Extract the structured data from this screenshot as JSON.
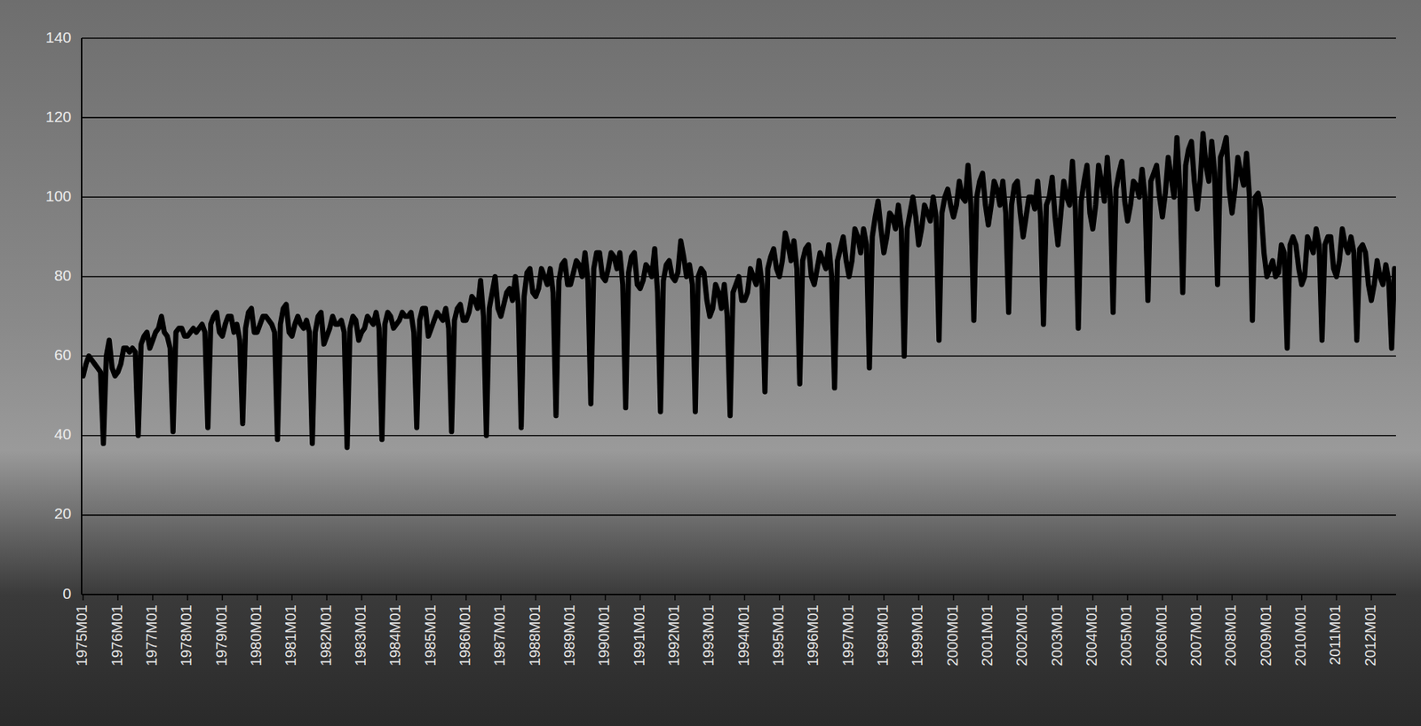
{
  "chart_data": {
    "type": "line",
    "color": "#000000",
    "grid": true,
    "ylim": [
      0,
      140
    ],
    "yticks": [
      0,
      20,
      40,
      60,
      80,
      100,
      120,
      140
    ],
    "categories": [
      "1975M01",
      null,
      null,
      null,
      null,
      null,
      null,
      null,
      null,
      null,
      null,
      null,
      "1976M01",
      null,
      null,
      null,
      null,
      null,
      null,
      null,
      null,
      null,
      null,
      null,
      "1977M01",
      null,
      null,
      null,
      null,
      null,
      null,
      null,
      null,
      null,
      null,
      null,
      "1978M01",
      null,
      null,
      null,
      null,
      null,
      null,
      null,
      null,
      null,
      null,
      null,
      "1979M01",
      null,
      null,
      null,
      null,
      null,
      null,
      null,
      null,
      null,
      null,
      null,
      "1980M01",
      null,
      null,
      null,
      null,
      null,
      null,
      null,
      null,
      null,
      null,
      null,
      "1981M01",
      null,
      null,
      null,
      null,
      null,
      null,
      null,
      null,
      null,
      null,
      null,
      "1982M01",
      null,
      null,
      null,
      null,
      null,
      null,
      null,
      null,
      null,
      null,
      null,
      "1983M01",
      null,
      null,
      null,
      null,
      null,
      null,
      null,
      null,
      null,
      null,
      null,
      "1984M01",
      null,
      null,
      null,
      null,
      null,
      null,
      null,
      null,
      null,
      null,
      null,
      "1985M01",
      null,
      null,
      null,
      null,
      null,
      null,
      null,
      null,
      null,
      null,
      null,
      "1986M01",
      null,
      null,
      null,
      null,
      null,
      null,
      null,
      null,
      null,
      null,
      null,
      "1987M01",
      null,
      null,
      null,
      null,
      null,
      null,
      null,
      null,
      null,
      null,
      null,
      "1988M01",
      null,
      null,
      null,
      null,
      null,
      null,
      null,
      null,
      null,
      null,
      null,
      "1989M01",
      null,
      null,
      null,
      null,
      null,
      null,
      null,
      null,
      null,
      null,
      null,
      "1990M01",
      null,
      null,
      null,
      null,
      null,
      null,
      null,
      null,
      null,
      null,
      null,
      "1991M01",
      null,
      null,
      null,
      null,
      null,
      null,
      null,
      null,
      null,
      null,
      null,
      "1992M01",
      null,
      null,
      null,
      null,
      null,
      null,
      null,
      null,
      null,
      null,
      null,
      "1993M01",
      null,
      null,
      null,
      null,
      null,
      null,
      null,
      null,
      null,
      null,
      null,
      "1994M01",
      null,
      null,
      null,
      null,
      null,
      null,
      null,
      null,
      null,
      null,
      null,
      "1995M01",
      null,
      null,
      null,
      null,
      null,
      null,
      null,
      null,
      null,
      null,
      null,
      "1996M01",
      null,
      null,
      null,
      null,
      null,
      null,
      null,
      null,
      null,
      null,
      null,
      "1997M01",
      null,
      null,
      null,
      null,
      null,
      null,
      null,
      null,
      null,
      null,
      null,
      "1998M01",
      null,
      null,
      null,
      null,
      null,
      null,
      null,
      null,
      null,
      null,
      null,
      "1999M01",
      null,
      null,
      null,
      null,
      null,
      null,
      null,
      null,
      null,
      null,
      null,
      "2000M01",
      null,
      null,
      null,
      null,
      null,
      null,
      null,
      null,
      null,
      null,
      null,
      "2001M01",
      null,
      null,
      null,
      null,
      null,
      null,
      null,
      null,
      null,
      null,
      null,
      "2002M01",
      null,
      null,
      null,
      null,
      null,
      null,
      null,
      null,
      null,
      null,
      null,
      "2003M01",
      null,
      null,
      null,
      null,
      null,
      null,
      null,
      null,
      null,
      null,
      null,
      "2004M01",
      null,
      null,
      null,
      null,
      null,
      null,
      null,
      null,
      null,
      null,
      null,
      "2005M01",
      null,
      null,
      null,
      null,
      null,
      null,
      null,
      null,
      null,
      null,
      null,
      "2006M01",
      null,
      null,
      null,
      null,
      null,
      null,
      null,
      null,
      null,
      null,
      null,
      "2007M01",
      null,
      null,
      null,
      null,
      null,
      null,
      null,
      null,
      null,
      null,
      null,
      "2008M01",
      null,
      null,
      null,
      null,
      null,
      null,
      null,
      null,
      null,
      null,
      null,
      "2009M01",
      null,
      null,
      null,
      null,
      null,
      null,
      null,
      null,
      null,
      null,
      null,
      "2010M01",
      null,
      null,
      null,
      null,
      null,
      null,
      null,
      null,
      null,
      null,
      null,
      "2011M01",
      null,
      null,
      null,
      null,
      null,
      null,
      null,
      null,
      null,
      null,
      null,
      "2012M01",
      null,
      null,
      null,
      null,
      null,
      null,
      null,
      null
    ],
    "values": [
      55,
      58,
      60,
      59,
      58,
      57,
      56,
      38,
      60,
      64,
      57,
      55,
      56,
      58,
      62,
      62,
      61,
      62,
      61,
      40,
      63,
      65,
      66,
      62,
      64,
      66,
      67,
      70,
      66,
      65,
      62,
      41,
      66,
      67,
      67,
      65,
      65,
      66,
      67,
      66,
      67,
      68,
      66,
      42,
      68,
      70,
      71,
      66,
      65,
      68,
      70,
      70,
      66,
      68,
      64,
      43,
      67,
      71,
      72,
      66,
      66,
      68,
      70,
      70,
      69,
      68,
      66,
      39,
      68,
      72,
      73,
      66,
      65,
      68,
      70,
      68,
      67,
      69,
      66,
      38,
      66,
      70,
      71,
      63,
      65,
      67,
      70,
      68,
      68,
      69,
      66,
      37,
      67,
      70,
      69,
      64,
      66,
      67,
      70,
      69,
      68,
      71,
      67,
      39,
      68,
      71,
      70,
      67,
      68,
      69,
      71,
      70,
      70,
      71,
      66,
      42,
      69,
      72,
      72,
      65,
      67,
      69,
      71,
      70,
      69,
      72,
      67,
      41,
      69,
      72,
      73,
      69,
      69,
      71,
      75,
      74,
      72,
      79,
      70,
      40,
      72,
      76,
      80,
      72,
      70,
      73,
      76,
      77,
      74,
      80,
      73,
      42,
      75,
      81,
      82,
      76,
      75,
      77,
      82,
      80,
      78,
      82,
      76,
      45,
      79,
      83,
      84,
      78,
      78,
      81,
      84,
      83,
      80,
      86,
      79,
      48,
      82,
      86,
      86,
      80,
      79,
      82,
      86,
      85,
      82,
      86,
      78,
      47,
      81,
      85,
      86,
      78,
      77,
      79,
      83,
      82,
      80,
      87,
      76,
      46,
      79,
      83,
      84,
      80,
      79,
      81,
      89,
      85,
      80,
      83,
      78,
      46,
      80,
      82,
      81,
      74,
      70,
      72,
      78,
      76,
      72,
      78,
      70,
      45,
      76,
      78,
      80,
      74,
      74,
      76,
      82,
      80,
      78,
      84,
      78,
      51,
      82,
      85,
      87,
      82,
      80,
      84,
      91,
      88,
      84,
      89,
      82,
      53,
      84,
      87,
      88,
      80,
      78,
      82,
      86,
      84,
      82,
      88,
      80,
      52,
      84,
      87,
      90,
      84,
      80,
      84,
      92,
      90,
      86,
      92,
      88,
      57,
      90,
      95,
      99,
      92,
      86,
      90,
      96,
      95,
      92,
      98,
      92,
      60,
      92,
      96,
      100,
      95,
      88,
      92,
      98,
      96,
      94,
      100,
      95,
      64,
      96,
      100,
      102,
      98,
      95,
      98,
      104,
      100,
      99,
      108,
      98,
      69,
      100,
      104,
      106,
      98,
      93,
      98,
      104,
      102,
      98,
      104,
      96,
      71,
      98,
      103,
      104,
      96,
      90,
      95,
      100,
      100,
      97,
      104,
      95,
      68,
      98,
      100,
      105,
      95,
      88,
      96,
      104,
      100,
      98,
      109,
      97,
      67,
      99,
      104,
      108,
      96,
      92,
      98,
      108,
      104,
      99,
      110,
      100,
      71,
      102,
      106,
      109,
      99,
      94,
      98,
      104,
      103,
      100,
      107,
      100,
      74,
      104,
      106,
      108,
      100,
      95,
      101,
      110,
      105,
      100,
      115,
      102,
      76,
      108,
      112,
      114,
      104,
      97,
      104,
      116,
      108,
      104,
      114,
      106,
      78,
      110,
      112,
      115,
      102,
      96,
      102,
      110,
      106,
      103,
      111,
      100,
      69,
      100,
      101,
      97,
      86,
      80,
      82,
      84,
      80,
      81,
      88,
      86,
      62,
      88,
      90,
      88,
      82,
      78,
      80,
      90,
      88,
      86,
      92,
      88,
      64,
      88,
      90,
      90,
      82,
      80,
      84,
      92,
      88,
      86,
      90,
      86,
      64,
      87,
      88,
      86,
      78,
      74,
      78,
      84,
      80,
      78,
      83,
      79,
      62,
      82
    ]
  }
}
